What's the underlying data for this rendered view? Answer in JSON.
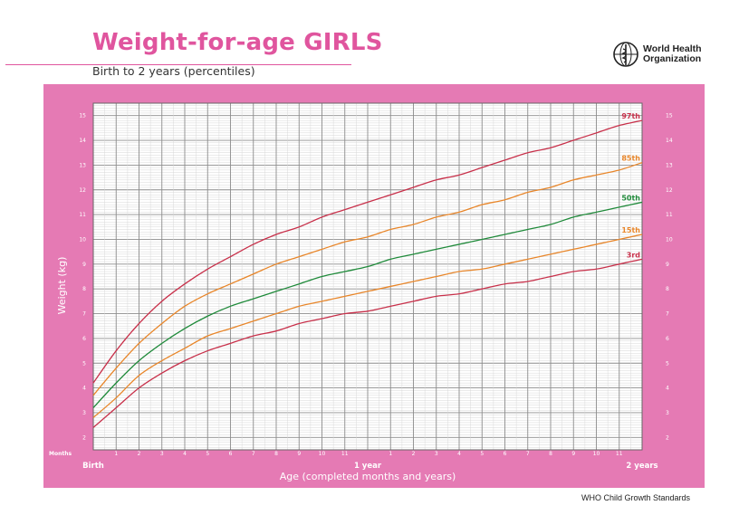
{
  "header": {
    "title": "Weight-for-age GIRLS",
    "subtitle": "Birth to 2 years (percentiles)",
    "org_line1": "World Health",
    "org_line2": "Organization",
    "logo_icon": "who-emblem-icon"
  },
  "footer": {
    "text": "WHO Child Growth Standards"
  },
  "colors": {
    "title": "#e0559e",
    "panel": "#e57ab4",
    "p3": "#c8304a",
    "p15": "#e8862a",
    "p50": "#1f8a3a",
    "p85": "#e8862a",
    "p97": "#c8304a"
  },
  "chart_data": {
    "type": "line",
    "title": "Weight-for-age GIRLS",
    "subtitle": "Birth to 2 years (percentiles)",
    "xlabel": "Age (completed months and years)",
    "ylabel": "Weight (kg)",
    "xlim": [
      0,
      24
    ],
    "ylim": [
      1.5,
      15.5
    ],
    "y_ticks": [
      2,
      3,
      4,
      5,
      6,
      7,
      8,
      9,
      10,
      11,
      12,
      13,
      14,
      15
    ],
    "x_months_row_label": "Months",
    "x_month_ticks": [
      "1",
      "2",
      "3",
      "4",
      "5",
      "6",
      "7",
      "8",
      "9",
      "10",
      "11",
      "1",
      "2",
      "3",
      "4",
      "5",
      "6",
      "7",
      "8",
      "9",
      "10",
      "11"
    ],
    "x_year_labels": [
      {
        "x": 0,
        "label": "Birth"
      },
      {
        "x": 12,
        "label": "1 year"
      },
      {
        "x": 24,
        "label": "2 years"
      }
    ],
    "grid": true,
    "x": [
      0,
      1,
      2,
      3,
      4,
      5,
      6,
      7,
      8,
      9,
      10,
      11,
      12,
      13,
      14,
      15,
      16,
      17,
      18,
      19,
      20,
      21,
      22,
      23,
      24
    ],
    "series": [
      {
        "name": "3rd",
        "color_key": "p3",
        "values": [
          2.4,
          3.2,
          4.0,
          4.6,
          5.1,
          5.5,
          5.8,
          6.1,
          6.3,
          6.6,
          6.8,
          7.0,
          7.1,
          7.3,
          7.5,
          7.7,
          7.8,
          8.0,
          8.2,
          8.3,
          8.5,
          8.7,
          8.8,
          9.0,
          9.2
        ]
      },
      {
        "name": "15th",
        "color_key": "p15",
        "values": [
          2.8,
          3.6,
          4.5,
          5.1,
          5.6,
          6.1,
          6.4,
          6.7,
          7.0,
          7.3,
          7.5,
          7.7,
          7.9,
          8.1,
          8.3,
          8.5,
          8.7,
          8.8,
          9.0,
          9.2,
          9.4,
          9.6,
          9.8,
          10.0,
          10.2
        ]
      },
      {
        "name": "50th",
        "color_key": "p50",
        "values": [
          3.2,
          4.2,
          5.1,
          5.8,
          6.4,
          6.9,
          7.3,
          7.6,
          7.9,
          8.2,
          8.5,
          8.7,
          8.9,
          9.2,
          9.4,
          9.6,
          9.8,
          10.0,
          10.2,
          10.4,
          10.6,
          10.9,
          11.1,
          11.3,
          11.5
        ]
      },
      {
        "name": "85th",
        "color_key": "p85",
        "values": [
          3.7,
          4.8,
          5.8,
          6.6,
          7.3,
          7.8,
          8.2,
          8.6,
          9.0,
          9.3,
          9.6,
          9.9,
          10.1,
          10.4,
          10.6,
          10.9,
          11.1,
          11.4,
          11.6,
          11.9,
          12.1,
          12.4,
          12.6,
          12.8,
          13.1
        ]
      },
      {
        "name": "97th",
        "color_key": "p97",
        "values": [
          4.2,
          5.5,
          6.6,
          7.5,
          8.2,
          8.8,
          9.3,
          9.8,
          10.2,
          10.5,
          10.9,
          11.2,
          11.5,
          11.8,
          12.1,
          12.4,
          12.6,
          12.9,
          13.2,
          13.5,
          13.7,
          14.0,
          14.3,
          14.6,
          14.8
        ]
      }
    ]
  }
}
